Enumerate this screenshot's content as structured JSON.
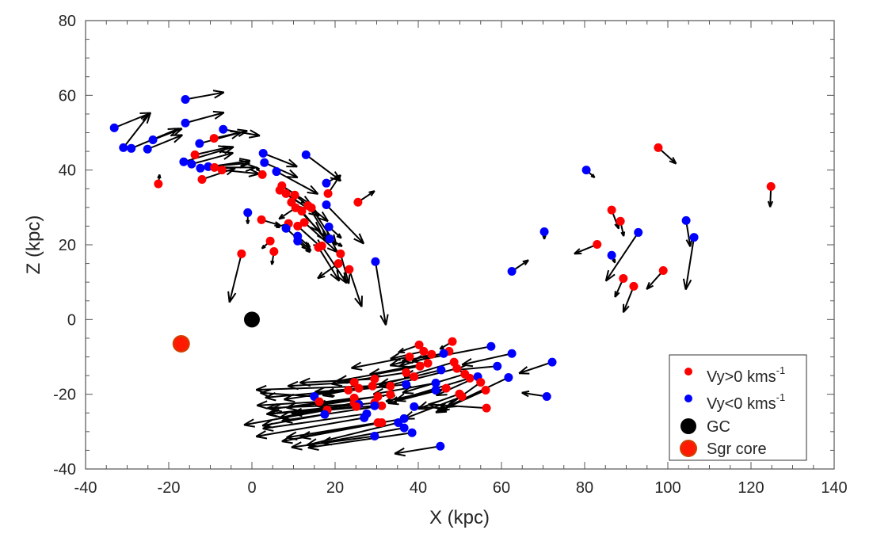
{
  "chart_data": {
    "type": "scatter",
    "title": "",
    "xlabel": "X (kpc)",
    "ylabel": "Z (kpc)",
    "xlim": [
      -40,
      140
    ],
    "ylim": [
      -40,
      80
    ],
    "xticks": [
      -40,
      -20,
      0,
      20,
      40,
      60,
      80,
      100,
      120,
      140
    ],
    "yticks": [
      -40,
      -20,
      0,
      20,
      40,
      60,
      80
    ],
    "grid": false,
    "legend_position": "bottom-right",
    "legend": [
      {
        "label": "Vy>0 kms",
        "sup": "-1",
        "color": "#ff0000",
        "marker": "small-dot"
      },
      {
        "label": "Vy<0 kms",
        "sup": "-1",
        "color": "#0000ff",
        "marker": "small-dot"
      },
      {
        "label": "GC",
        "color": "#000000",
        "marker": "large-dot"
      },
      {
        "label": "Sgr core",
        "color": "#ff1a00",
        "marker": "large-dot"
      }
    ],
    "colors": {
      "vy_pos": "#ff0000",
      "vy_neg": "#0000ff",
      "gc": "#000000",
      "sgr": "#ff1a00",
      "arrow": "#000000"
    },
    "special_points": {
      "gc": {
        "x": 0,
        "z": 0
      },
      "sgr_core": {
        "x": -17,
        "z": -6.5
      }
    },
    "fields": [
      "x",
      "z",
      "dx",
      "dz",
      "vy_sign"
    ],
    "points": [
      [
        -33.1,
        51.3,
        8.8,
        4.0,
        -1
      ],
      [
        -30.9,
        46,
        6.5,
        9.3,
        -1
      ],
      [
        -29,
        45.8,
        11.4,
        5.3,
        -1
      ],
      [
        -25.1,
        45.6,
        8.4,
        3.8,
        -1
      ],
      [
        -23.8,
        48.1,
        7,
        3,
        -1
      ],
      [
        -16,
        58.9,
        9.3,
        1.9,
        -1
      ],
      [
        -16,
        52.6,
        9.3,
        2.8,
        -1
      ],
      [
        -6.9,
        50.9,
        8.8,
        -1.7,
        -1
      ],
      [
        -12.6,
        47.1,
        10,
        3,
        -1
      ],
      [
        -16.4,
        42.2,
        12,
        4,
        -1
      ],
      [
        -14.5,
        41.6,
        10,
        3,
        -1
      ],
      [
        -12.4,
        40.5,
        12,
        2,
        -1
      ],
      [
        -10.5,
        40.9,
        10,
        1,
        -1
      ],
      [
        -12,
        37.5,
        8,
        3,
        1
      ],
      [
        -22.5,
        36.3,
        0.3,
        2.5,
        1
      ],
      [
        -9.1,
        48.5,
        8,
        2,
        1
      ],
      [
        -13.7,
        44.1,
        8,
        2,
        1
      ],
      [
        -9,
        40.7,
        10,
        0,
        1
      ],
      [
        -7.2,
        40,
        9,
        -1,
        1
      ],
      [
        2.7,
        44.5,
        8.2,
        -3.6,
        -1
      ],
      [
        3,
        42,
        8,
        -4,
        -1
      ],
      [
        5.9,
        39.6,
        10,
        -6,
        -1
      ],
      [
        2.5,
        38.8,
        -1.5,
        2,
        1
      ],
      [
        13,
        44.1,
        8.4,
        -7,
        -1
      ],
      [
        17.9,
        36.5,
        3,
        2,
        -1
      ],
      [
        18.3,
        33.7,
        3,
        5,
        1
      ],
      [
        25.5,
        31.4,
        4,
        3,
        1
      ],
      [
        17.9,
        30.7,
        9,
        -10.4,
        -1
      ],
      [
        29.7,
        15.5,
        2.5,
        -17,
        -1
      ],
      [
        -2.5,
        17.6,
        -2.9,
        -13,
        1
      ],
      [
        -1,
        28.6,
        0,
        -3,
        -1
      ],
      [
        2.3,
        26.7,
        4.5,
        -1.5,
        1
      ],
      [
        4.4,
        21,
        -2,
        -2,
        1
      ],
      [
        5.3,
        18.2,
        -0.5,
        -3.5,
        1
      ],
      [
        6.7,
        34.6,
        7,
        -5,
        1
      ],
      [
        7.2,
        35.8,
        7,
        -5,
        1
      ],
      [
        8.2,
        33.7,
        8,
        -6,
        1
      ],
      [
        10.3,
        33.3,
        8,
        -7,
        1
      ],
      [
        9.5,
        31.4,
        7,
        -8,
        1
      ],
      [
        10.5,
        29.9,
        -4,
        -3,
        1
      ],
      [
        12,
        29,
        6,
        -8,
        1
      ],
      [
        13.5,
        30.5,
        5,
        -9,
        1
      ],
      [
        14.3,
        29.9,
        6,
        -10,
        1
      ],
      [
        12.6,
        26,
        8,
        -8,
        1
      ],
      [
        8.8,
        25.7,
        -3,
        -1,
        1
      ],
      [
        11,
        25,
        6,
        -6,
        1
      ],
      [
        8.2,
        24.4,
        6,
        -6,
        -1
      ],
      [
        11,
        22.3,
        3,
        -3,
        -1
      ],
      [
        11,
        21,
        3,
        -3,
        -1
      ],
      [
        16,
        19.3,
        5,
        -9,
        1
      ],
      [
        16.8,
        19.7,
        6,
        -10,
        1
      ],
      [
        18.5,
        24.8,
        3,
        -3,
        -1
      ],
      [
        18.7,
        21.6,
        3,
        -2,
        -1
      ],
      [
        21.3,
        17.6,
        2,
        -8,
        1
      ],
      [
        20.8,
        15,
        -5,
        -4,
        1
      ],
      [
        23.4,
        13.4,
        3,
        -10,
        1
      ],
      [
        97.7,
        46,
        4.3,
        -4.3,
        1
      ],
      [
        80.4,
        40,
        2,
        -2,
        -1
      ],
      [
        124.8,
        35.6,
        -0.2,
        -5.5,
        1
      ],
      [
        86.5,
        29.3,
        1.7,
        -5,
        1
      ],
      [
        70.3,
        23.5,
        0,
        -2,
        -1
      ],
      [
        88.6,
        26.3,
        0.8,
        -4,
        1
      ],
      [
        92.9,
        23.3,
        -7.8,
        -13,
        -1
      ],
      [
        104.4,
        26.5,
        1,
        -7,
        -1
      ],
      [
        106.3,
        22,
        -2,
        -14,
        -1
      ],
      [
        83,
        20.1,
        -5.5,
        -2.5,
        1
      ],
      [
        86.5,
        17.2,
        0.8,
        -2,
        -1
      ],
      [
        62.5,
        12.9,
        4,
        3,
        -1
      ],
      [
        89.3,
        11,
        -2,
        -5,
        1
      ],
      [
        91.8,
        8.9,
        -2.5,
        -7,
        1
      ],
      [
        98.9,
        13.1,
        -4,
        -5,
        1
      ],
      [
        40.2,
        -6.8,
        -5,
        -2,
        1
      ],
      [
        48.2,
        -5.9,
        -3,
        -2,
        1
      ],
      [
        41.3,
        -8.5,
        -8,
        -2,
        1
      ],
      [
        43.2,
        -9.3,
        -10,
        -3,
        1
      ],
      [
        37.9,
        -10,
        -14,
        -3,
        1
      ],
      [
        47.4,
        -8.5,
        -12,
        -4,
        1
      ],
      [
        46.1,
        -9.1,
        -10,
        -2,
        -1
      ],
      [
        57.5,
        -7.2,
        -19,
        -4,
        -1
      ],
      [
        62.5,
        -9.1,
        -12,
        -3,
        -1
      ],
      [
        72.2,
        -11.4,
        -8,
        -3,
        -1
      ],
      [
        59,
        -12.5,
        -10,
        -1,
        -1
      ],
      [
        61.7,
        -15.5,
        -15,
        -8,
        -1
      ],
      [
        70.9,
        -20.6,
        -6,
        1,
        -1
      ],
      [
        42.3,
        -11.7,
        -14,
        -3,
        1
      ],
      [
        48.6,
        -11.4,
        -12,
        -4,
        1
      ],
      [
        49.3,
        -13.1,
        -18,
        -5,
        1
      ],
      [
        45.5,
        -13.5,
        -15,
        -4,
        -1
      ],
      [
        40.4,
        -12.5,
        -20,
        -4,
        1
      ],
      [
        39,
        -15.3,
        -22,
        -5,
        1
      ],
      [
        37.1,
        -14.2,
        -18,
        -3,
        1
      ],
      [
        51.2,
        -14.6,
        -15,
        -5,
        1
      ],
      [
        52.4,
        -15.7,
        -18,
        -6,
        1
      ],
      [
        54.3,
        -15.3,
        -10,
        -5,
        -1
      ],
      [
        55,
        -16.8,
        -10,
        -8,
        1
      ],
      [
        56.2,
        -18.9,
        -12,
        -6,
        1
      ],
      [
        56.4,
        -23.7,
        -14,
        1,
        1
      ],
      [
        44.2,
        -17,
        -15,
        -3,
        -1
      ],
      [
        44.2,
        -18.9,
        -12,
        -3,
        -1
      ],
      [
        46.7,
        -18.4,
        -14,
        -4,
        1
      ],
      [
        49.9,
        -19.9,
        -10,
        -4,
        1
      ],
      [
        50.5,
        -20.6,
        -14,
        -6,
        1
      ],
      [
        33.3,
        -17.8,
        -16,
        -2,
        1
      ],
      [
        33.3,
        -20.1,
        -18,
        -3,
        1
      ],
      [
        29.5,
        -15.9,
        -18,
        -1,
        1
      ],
      [
        24.6,
        -16.8,
        -16,
        -1,
        1
      ],
      [
        23.2,
        -18.9,
        -20,
        -2,
        1
      ],
      [
        25.7,
        -18.4,
        -18,
        -3,
        1
      ],
      [
        30.3,
        -20.6,
        -22,
        -3,
        1
      ],
      [
        31.2,
        -23.1,
        -24,
        -4,
        1
      ],
      [
        29.5,
        -22.3,
        -26,
        -3,
        1
      ],
      [
        29.5,
        -23.1,
        -20,
        -2,
        -1
      ],
      [
        27.6,
        -25.2,
        -25,
        -4,
        -1
      ],
      [
        27,
        -26.3,
        -26,
        -5,
        -1
      ],
      [
        30.3,
        -27.6,
        -22,
        -4,
        1
      ],
      [
        31.2,
        -27.6,
        -24,
        -5,
        1
      ],
      [
        36.6,
        -26.5,
        -25,
        -5,
        -1
      ],
      [
        35.2,
        -27.6,
        -22,
        -6,
        -1
      ],
      [
        36.6,
        -29,
        -20,
        -4,
        -1
      ],
      [
        38.5,
        -30.3,
        -25,
        -4,
        -1
      ],
      [
        29.5,
        -31.2,
        -20,
        -3,
        -1
      ],
      [
        45.3,
        -33.9,
        -11,
        -2,
        -1
      ],
      [
        39,
        -23.3,
        8,
        -0.5,
        -1
      ],
      [
        24.6,
        -21,
        -20,
        -3,
        1
      ],
      [
        24.6,
        -22.3,
        -18,
        -4,
        1
      ],
      [
        15,
        -20.6,
        -13,
        1,
        -1
      ],
      [
        25.7,
        -22.7,
        -22,
        -1,
        -1
      ],
      [
        18.1,
        -24.2,
        -20,
        -4,
        1
      ],
      [
        17.5,
        -25.4,
        -15,
        -3,
        -1
      ],
      [
        16.2,
        -22,
        -15,
        -1,
        1
      ],
      [
        25.1,
        -23.3,
        -21,
        -2,
        1
      ],
      [
        29,
        -17.8,
        -28,
        -1,
        1
      ],
      [
        37.1,
        -17.4,
        -22,
        -2,
        -1
      ]
    ]
  }
}
